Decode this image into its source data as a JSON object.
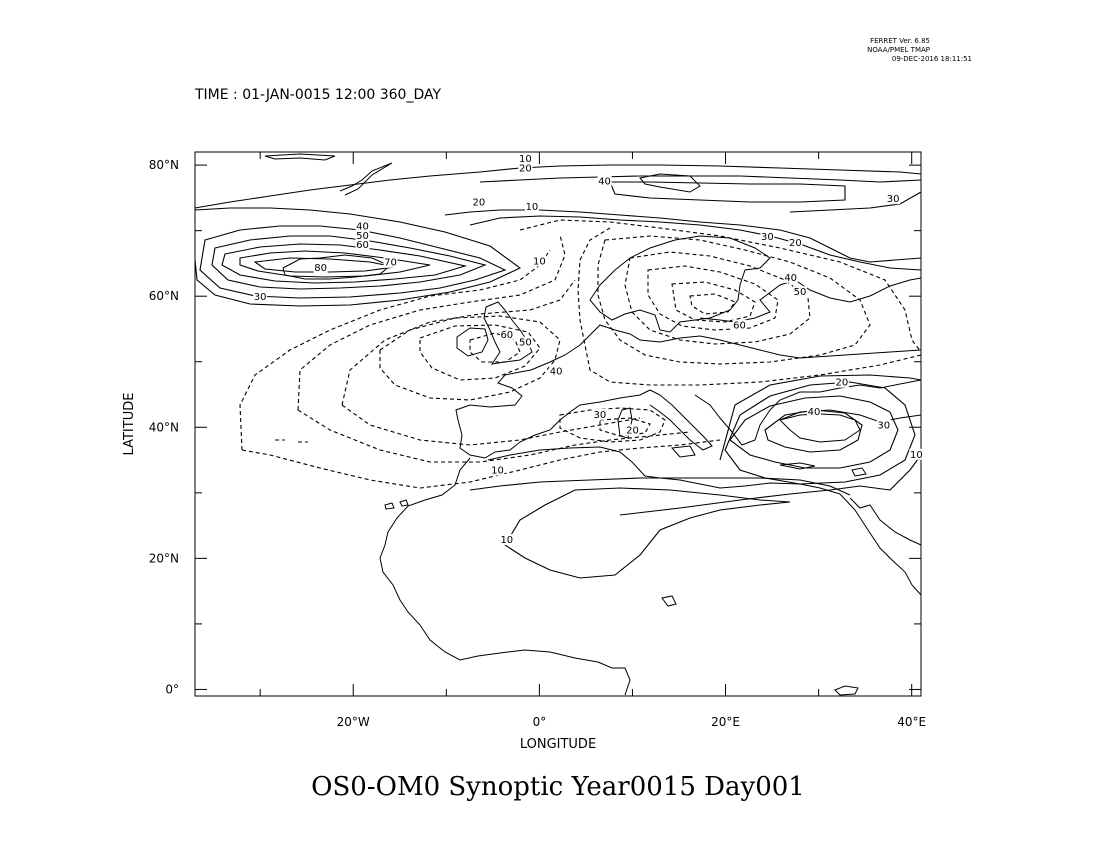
{
  "ferret": {
    "line1": "FERRET Ver. 6.85",
    "line2": "NOAA/PMEL TMAP",
    "line3": "09-DEC-2016 18:11:51"
  },
  "time_label": "TIME : 01-JAN-0015 12:00 360_DAY",
  "title": "OS0-OM0 Synoptic Year0015 Day001",
  "chart_data": {
    "type": "contour-map",
    "xlabel": "LONGITUDE",
    "ylabel": "LATITUDE",
    "xlim": [
      -37,
      41
    ],
    "ylim": [
      -1,
      82
    ],
    "x_ticks": [
      {
        "value": -20,
        "label": "20°W"
      },
      {
        "value": 0,
        "label": "0°"
      },
      {
        "value": 20,
        "label": "20°E"
      },
      {
        "value": 40,
        "label": "40°E"
      }
    ],
    "y_ticks": [
      {
        "value": 0,
        "label": "0°"
      },
      {
        "value": 20,
        "label": "20°N"
      },
      {
        "value": 40,
        "label": "40°N"
      },
      {
        "value": 60,
        "label": "60°N"
      },
      {
        "value": 80,
        "label": "80°N"
      }
    ],
    "contour_labels": [
      {
        "lon": -1.5,
        "lat": 80.6,
        "text": "10"
      },
      {
        "lon": -1.5,
        "lat": 79.2,
        "text": "20"
      },
      {
        "lon": 7,
        "lat": 77.2,
        "text": "40"
      },
      {
        "lon": 38,
        "lat": 74.5,
        "text": "30"
      },
      {
        "lon": -6.5,
        "lat": 74,
        "text": "20"
      },
      {
        "lon": -0.8,
        "lat": 73.3,
        "text": "10"
      },
      {
        "lon": -19,
        "lat": 70.3,
        "text": "40"
      },
      {
        "lon": -19,
        "lat": 68.9,
        "text": "50"
      },
      {
        "lon": -19,
        "lat": 67.5,
        "text": "60"
      },
      {
        "lon": -16,
        "lat": 64.8,
        "text": "70"
      },
      {
        "lon": -23.5,
        "lat": 64,
        "text": "80"
      },
      {
        "lon": -30,
        "lat": 59.6,
        "text": "30"
      },
      {
        "lon": 0,
        "lat": 65,
        "text": "10"
      },
      {
        "lon": 24.5,
        "lat": 68.7,
        "text": "30"
      },
      {
        "lon": 27.5,
        "lat": 67.8,
        "text": "20"
      },
      {
        "lon": 27,
        "lat": 62.5,
        "text": "40"
      },
      {
        "lon": 28,
        "lat": 60.3,
        "text": "50"
      },
      {
        "lon": 21.5,
        "lat": 55.2,
        "text": "60"
      },
      {
        "lon": -3.5,
        "lat": 53.8,
        "text": "60"
      },
      {
        "lon": -1.5,
        "lat": 52.6,
        "text": "50"
      },
      {
        "lon": 1.8,
        "lat": 48.2,
        "text": "40"
      },
      {
        "lon": 6.5,
        "lat": 41.6,
        "text": "30"
      },
      {
        "lon": 10,
        "lat": 39.2,
        "text": "20"
      },
      {
        "lon": -4.5,
        "lat": 33.1,
        "text": "10"
      },
      {
        "lon": 32.5,
        "lat": 46.5,
        "text": "20"
      },
      {
        "lon": 29.5,
        "lat": 42,
        "text": "40"
      },
      {
        "lon": 37,
        "lat": 40,
        "text": "30"
      },
      {
        "lon": 40.5,
        "lat": 35.5,
        "text": "10"
      },
      {
        "lon": -3.5,
        "lat": 22.5,
        "text": "10"
      }
    ]
  }
}
